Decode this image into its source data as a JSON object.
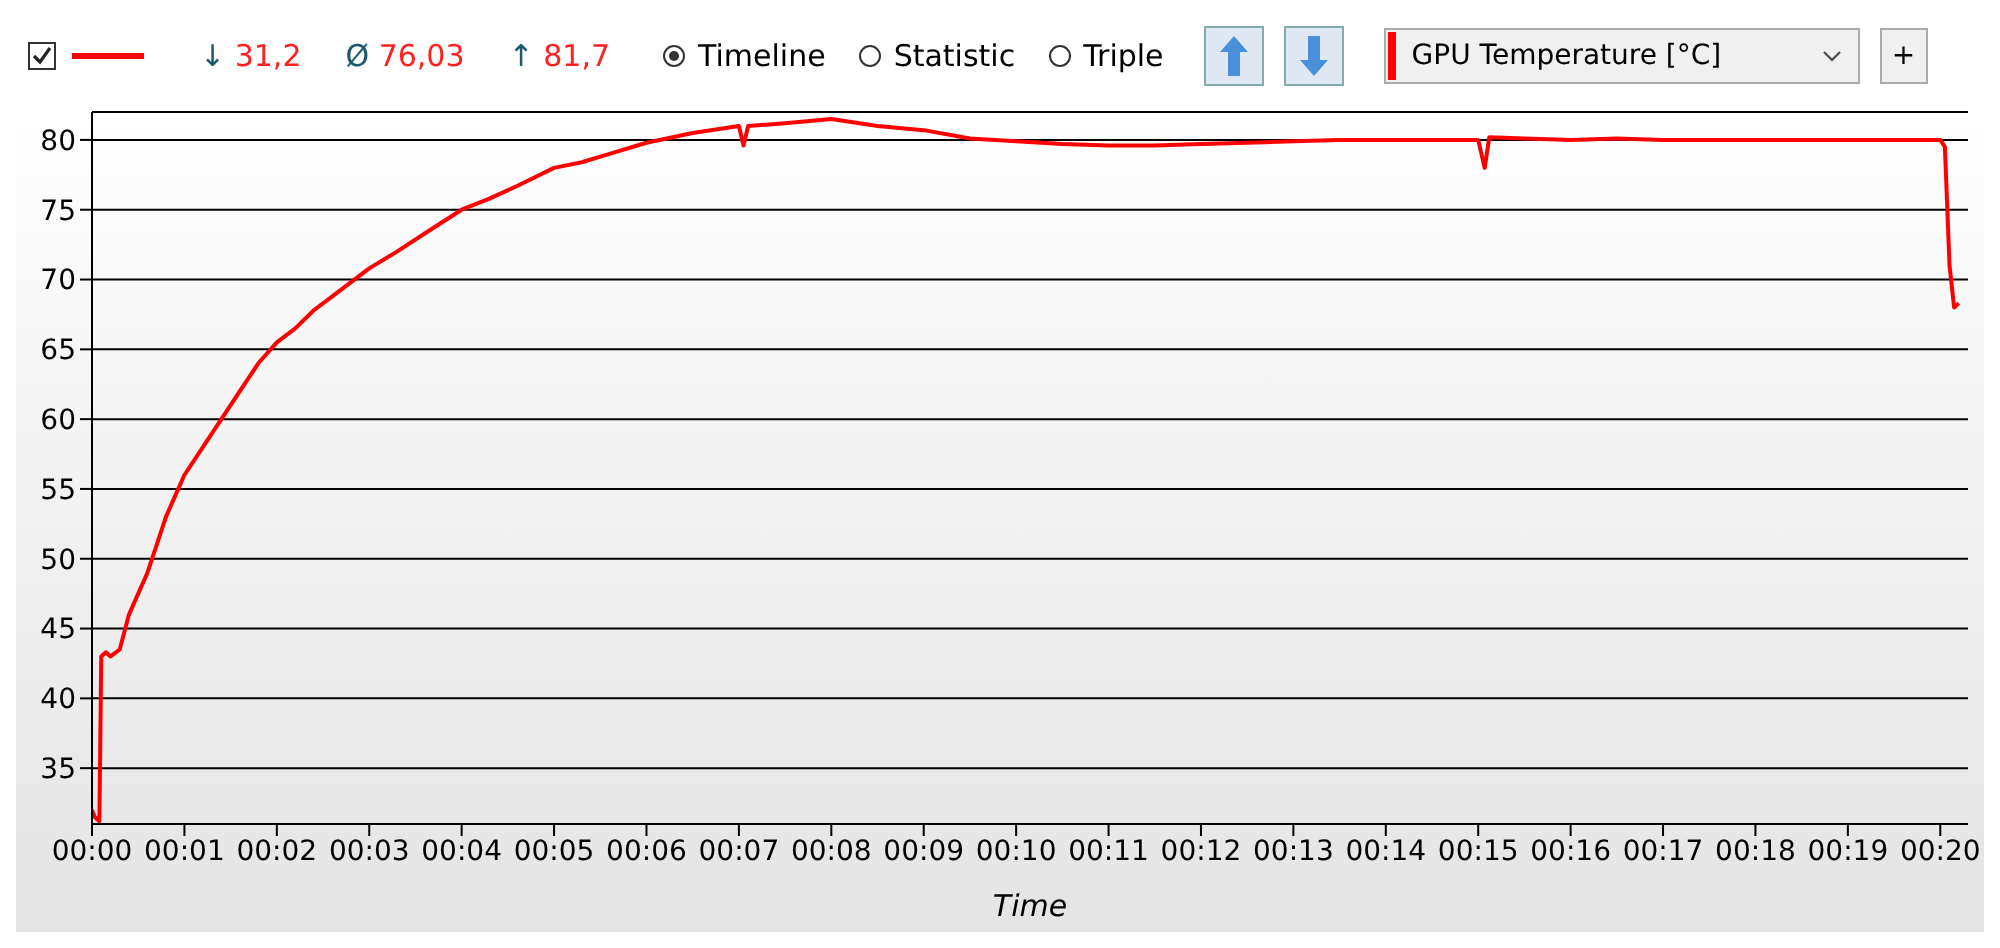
{
  "chart_data": {
    "type": "line",
    "xlabel": "Time",
    "annotations": [
      "↓ 31,2",
      "Ø 76,03",
      "↑ 81,7",
      "Timeline",
      "Statistic",
      "Triple",
      "+"
    ],
    "x": [
      0,
      0.03,
      0.08,
      0.1,
      0.15,
      0.2,
      0.3,
      0.4,
      0.5,
      0.6,
      0.7,
      0.8,
      0.9,
      1.0,
      1.2,
      1.4,
      1.6,
      1.8,
      2.0,
      2.2,
      2.4,
      2.6,
      2.8,
      3.0,
      3.3,
      3.6,
      4.0,
      4.3,
      4.6,
      5.0,
      5.3,
      5.6,
      6.0,
      6.5,
      7.0,
      7.05,
      7.1,
      7.5,
      8.0,
      8.5,
      9.0,
      9.5,
      10.0,
      10.5,
      11.0,
      11.5,
      12.0,
      12.5,
      13.0,
      13.5,
      14.0,
      14.5,
      15.0,
      15.07,
      15.12,
      15.5,
      16.0,
      16.5,
      17.0,
      17.5,
      18.0,
      18.5,
      19.0,
      19.5,
      20.0,
      20.05,
      20.1,
      20.15,
      20.2
    ],
    "series": [
      {
        "name": "GPU Temperature [°C]",
        "color": "#ff0000",
        "values": [
          32,
          31.5,
          31.2,
          43,
          43.3,
          43,
          43.5,
          46,
          47.5,
          49,
          51,
          53,
          54.5,
          56,
          58,
          60,
          62,
          64,
          65.5,
          66.5,
          67.8,
          68.8,
          69.8,
          70.8,
          72,
          73.3,
          75,
          75.8,
          76.7,
          78,
          78.4,
          79,
          79.8,
          80.5,
          81,
          79.6,
          81,
          81.2,
          81.5,
          81,
          80.7,
          80.1,
          79.9,
          79.7,
          79.6,
          79.6,
          79.7,
          79.8,
          79.9,
          80,
          80,
          80,
          80,
          78,
          80.2,
          80.1,
          80,
          80.1,
          80,
          80,
          80,
          80,
          80,
          80,
          80,
          79.5,
          71,
          68,
          68.3
        ]
      }
    ],
    "xlim": [
      0,
      20.3
    ],
    "xticks": [
      {
        "value": 0,
        "label": "00:00"
      },
      {
        "value": 1,
        "label": "00:01"
      },
      {
        "value": 2,
        "label": "00:02"
      },
      {
        "value": 3,
        "label": "00:03"
      },
      {
        "value": 4,
        "label": "00:04"
      },
      {
        "value": 5,
        "label": "00:05"
      },
      {
        "value": 6,
        "label": "00:06"
      },
      {
        "value": 7,
        "label": "00:07"
      },
      {
        "value": 8,
        "label": "00:08"
      },
      {
        "value": 9,
        "label": "00:09"
      },
      {
        "value": 10,
        "label": "00:10"
      },
      {
        "value": 11,
        "label": "00:11"
      },
      {
        "value": 12,
        "label": "00:12"
      },
      {
        "value": 13,
        "label": "00:13"
      },
      {
        "value": 14,
        "label": "00:14"
      },
      {
        "value": 15,
        "label": "00:15"
      },
      {
        "value": 16,
        "label": "00:16"
      },
      {
        "value": 17,
        "label": "00:17"
      },
      {
        "value": 18,
        "label": "00:18"
      },
      {
        "value": 19,
        "label": "00:19"
      },
      {
        "value": 20,
        "label": "00:20"
      }
    ],
    "ylim": [
      31,
      82
    ],
    "yticks": [
      35,
      40,
      45,
      50,
      55,
      60,
      65,
      70,
      75,
      80
    ],
    "grid": "y",
    "legend": "top right",
    "marker": "none",
    "line_style": "solid"
  }
}
